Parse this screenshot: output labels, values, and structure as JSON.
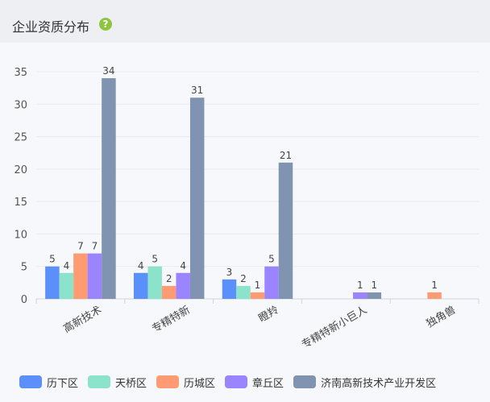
{
  "panel": {
    "title": "企业资质分布",
    "help_icon": "question-circle-icon"
  },
  "chart_data": {
    "type": "bar",
    "categories": [
      "高新技术",
      "专精特新",
      "瞪羚",
      "专精特新小巨人",
      "独角兽"
    ],
    "series": [
      {
        "name": "历下区",
        "color": "#5b8ff9",
        "values": [
          5,
          4,
          3,
          null,
          null
        ]
      },
      {
        "name": "天桥区",
        "color": "#8be3cb",
        "values": [
          4,
          5,
          2,
          null,
          null
        ]
      },
      {
        "name": "历城区",
        "color": "#ff9b73",
        "values": [
          7,
          2,
          1,
          null,
          1
        ]
      },
      {
        "name": "章丘区",
        "color": "#9a84ff",
        "values": [
          7,
          4,
          5,
          1,
          null
        ]
      },
      {
        "name": "济南高新技术产业开发区",
        "color": "#8093b0",
        "values": [
          34,
          31,
          21,
          1,
          null
        ]
      }
    ],
    "yticks": [
      0,
      5,
      10,
      15,
      20,
      25,
      30,
      35
    ],
    "ylim": [
      0,
      35
    ],
    "legend_position": "bottom",
    "grid": true
  }
}
